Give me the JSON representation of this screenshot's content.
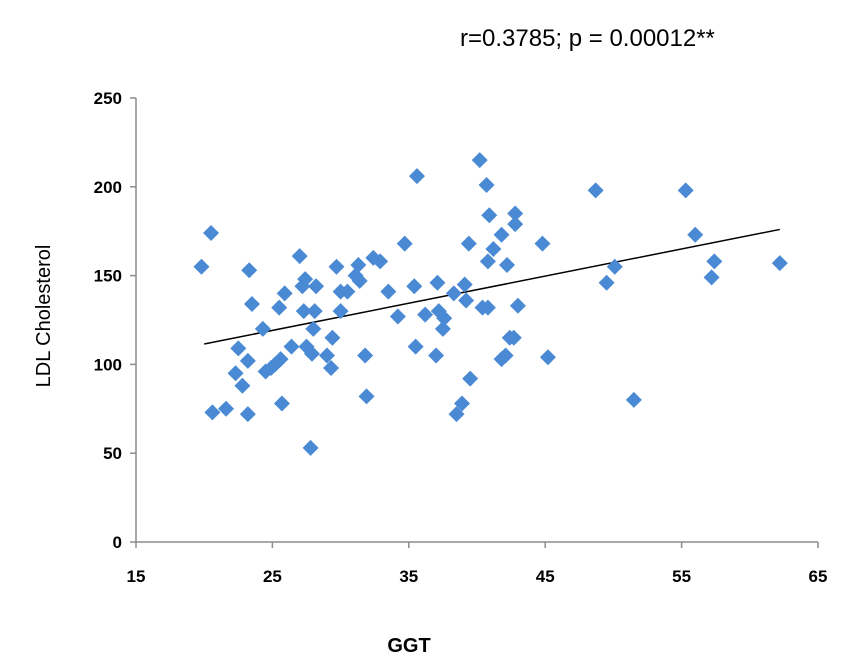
{
  "chart_data": {
    "type": "scatter",
    "annotation": "r=0.3785; p = 0.00012**",
    "xlabel": "GGT",
    "ylabel": "LDL Cholesterol",
    "xlim": [
      15,
      65
    ],
    "ylim": [
      0,
      250
    ],
    "x_ticks": [
      "15",
      "25",
      "35",
      "45",
      "55",
      "65"
    ],
    "y_ticks": [
      "0",
      "50",
      "100",
      "150",
      "200",
      "250"
    ],
    "grid": false,
    "legend": "none",
    "marker_color": "#4a8ad4",
    "marker": "diamond",
    "trendline": {
      "x": [
        20,
        62.2
      ],
      "y": [
        111.5,
        176
      ]
    },
    "points": [
      {
        "x": 19.8,
        "y": 155
      },
      {
        "x": 20.5,
        "y": 174
      },
      {
        "x": 20.6,
        "y": 73
      },
      {
        "x": 21.6,
        "y": 75
      },
      {
        "x": 22.3,
        "y": 95
      },
      {
        "x": 22.5,
        "y": 109
      },
      {
        "x": 22.8,
        "y": 88
      },
      {
        "x": 23.2,
        "y": 72
      },
      {
        "x": 23.2,
        "y": 102
      },
      {
        "x": 23.3,
        "y": 153
      },
      {
        "x": 23.5,
        "y": 134
      },
      {
        "x": 24.3,
        "y": 120
      },
      {
        "x": 24.5,
        "y": 96
      },
      {
        "x": 24.9,
        "y": 98
      },
      {
        "x": 25.2,
        "y": 100
      },
      {
        "x": 25.5,
        "y": 132
      },
      {
        "x": 25.6,
        "y": 103
      },
      {
        "x": 25.7,
        "y": 78
      },
      {
        "x": 25.9,
        "y": 140
      },
      {
        "x": 26.4,
        "y": 110
      },
      {
        "x": 27.0,
        "y": 161
      },
      {
        "x": 27.2,
        "y": 144
      },
      {
        "x": 27.3,
        "y": 130
      },
      {
        "x": 27.4,
        "y": 148
      },
      {
        "x": 27.5,
        "y": 110
      },
      {
        "x": 27.8,
        "y": 53
      },
      {
        "x": 27.9,
        "y": 106
      },
      {
        "x": 28.0,
        "y": 120
      },
      {
        "x": 28.1,
        "y": 130
      },
      {
        "x": 28.2,
        "y": 144
      },
      {
        "x": 29.0,
        "y": 105
      },
      {
        "x": 29.3,
        "y": 98
      },
      {
        "x": 29.4,
        "y": 115
      },
      {
        "x": 29.7,
        "y": 155
      },
      {
        "x": 30.0,
        "y": 130
      },
      {
        "x": 30.0,
        "y": 141
      },
      {
        "x": 30.5,
        "y": 141
      },
      {
        "x": 31.1,
        "y": 150
      },
      {
        "x": 31.3,
        "y": 156
      },
      {
        "x": 31.4,
        "y": 147
      },
      {
        "x": 31.8,
        "y": 105
      },
      {
        "x": 31.9,
        "y": 82
      },
      {
        "x": 32.4,
        "y": 160
      },
      {
        "x": 32.9,
        "y": 158
      },
      {
        "x": 33.5,
        "y": 141
      },
      {
        "x": 34.2,
        "y": 127
      },
      {
        "x": 34.7,
        "y": 168
      },
      {
        "x": 35.4,
        "y": 144
      },
      {
        "x": 35.5,
        "y": 110
      },
      {
        "x": 35.6,
        "y": 206
      },
      {
        "x": 36.2,
        "y": 128
      },
      {
        "x": 37.0,
        "y": 105
      },
      {
        "x": 37.1,
        "y": 146
      },
      {
        "x": 37.2,
        "y": 130
      },
      {
        "x": 37.5,
        "y": 120
      },
      {
        "x": 37.6,
        "y": 126
      },
      {
        "x": 38.3,
        "y": 140
      },
      {
        "x": 38.5,
        "y": 72
      },
      {
        "x": 38.9,
        "y": 78
      },
      {
        "x": 39.1,
        "y": 145
      },
      {
        "x": 39.2,
        "y": 136
      },
      {
        "x": 39.4,
        "y": 168
      },
      {
        "x": 39.5,
        "y": 92
      },
      {
        "x": 40.2,
        "y": 215
      },
      {
        "x": 40.4,
        "y": 132
      },
      {
        "x": 40.7,
        "y": 201
      },
      {
        "x": 40.8,
        "y": 132
      },
      {
        "x": 40.8,
        "y": 158
      },
      {
        "x": 40.9,
        "y": 184
      },
      {
        "x": 41.2,
        "y": 165
      },
      {
        "x": 41.8,
        "y": 103
      },
      {
        "x": 41.8,
        "y": 173
      },
      {
        "x": 42.1,
        "y": 105
      },
      {
        "x": 42.2,
        "y": 156
      },
      {
        "x": 42.4,
        "y": 115
      },
      {
        "x": 42.7,
        "y": 115
      },
      {
        "x": 42.8,
        "y": 179
      },
      {
        "x": 42.8,
        "y": 185
      },
      {
        "x": 43.0,
        "y": 133
      },
      {
        "x": 44.8,
        "y": 168
      },
      {
        "x": 45.2,
        "y": 104
      },
      {
        "x": 48.7,
        "y": 198
      },
      {
        "x": 49.5,
        "y": 146
      },
      {
        "x": 50.1,
        "y": 155
      },
      {
        "x": 51.5,
        "y": 80
      },
      {
        "x": 55.3,
        "y": 198
      },
      {
        "x": 56.0,
        "y": 173
      },
      {
        "x": 57.2,
        "y": 149
      },
      {
        "x": 57.4,
        "y": 158
      },
      {
        "x": 62.2,
        "y": 157
      }
    ]
  }
}
